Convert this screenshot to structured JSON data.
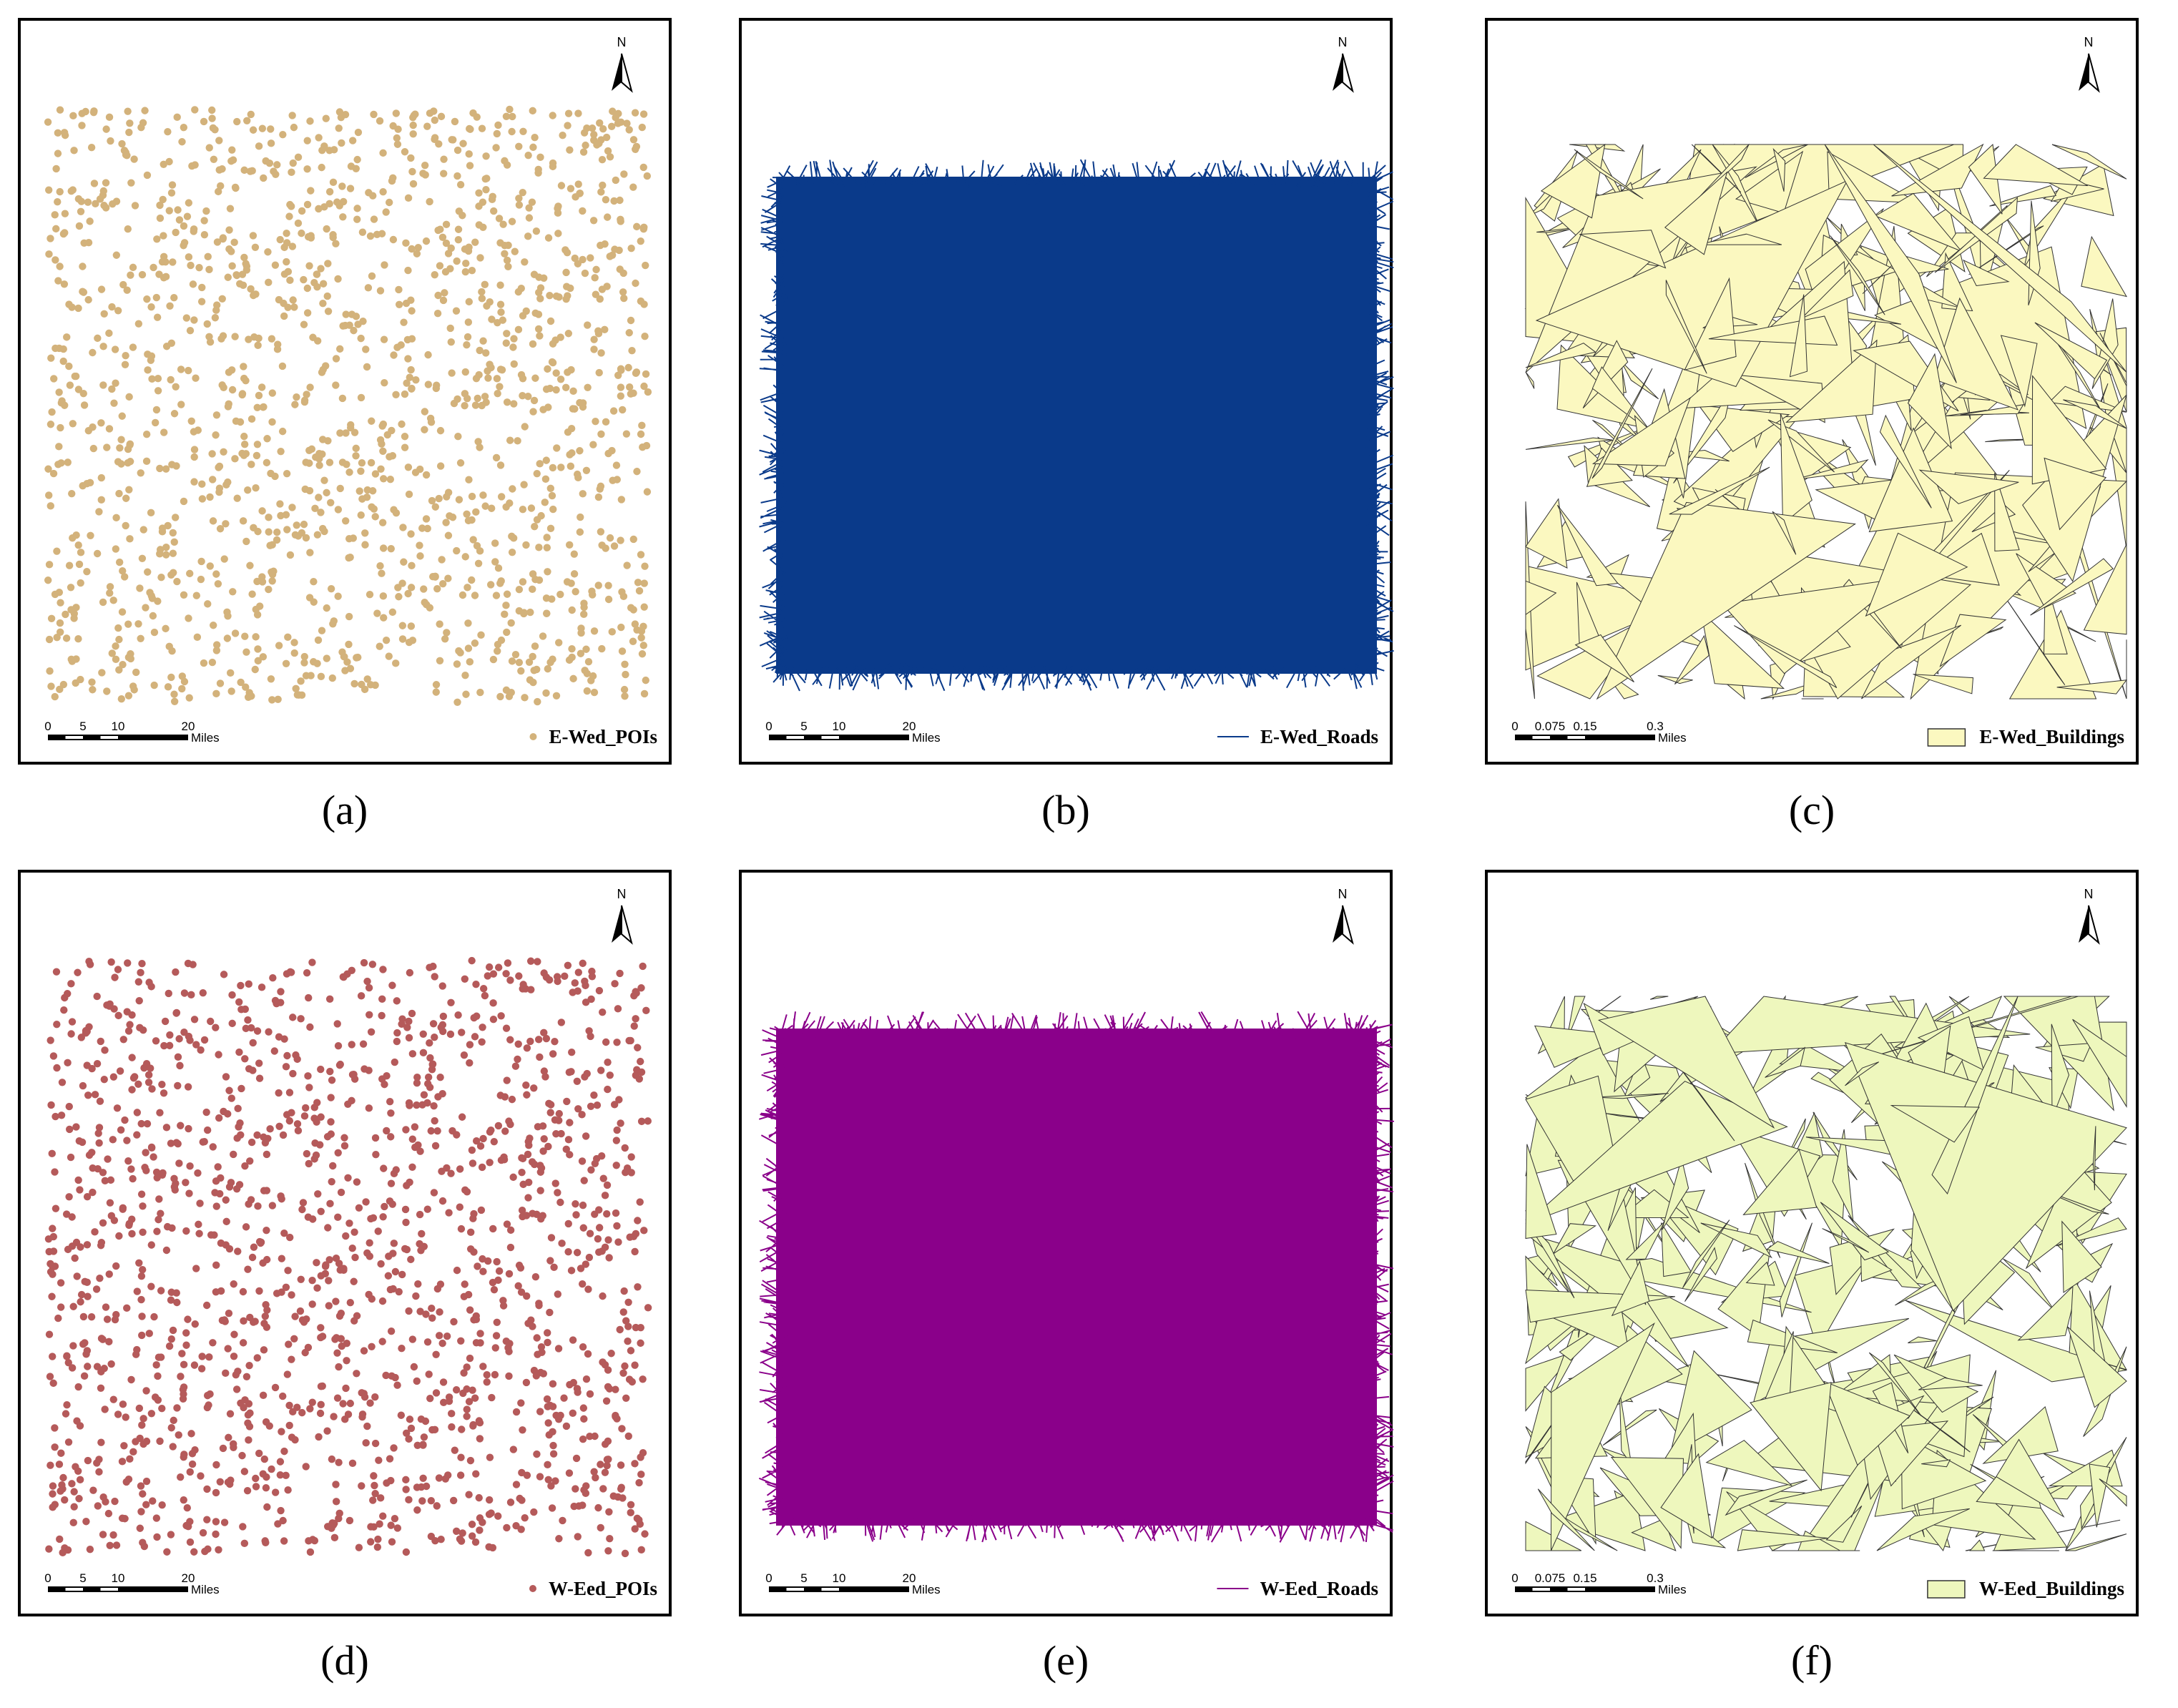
{
  "panels": [
    {
      "caption": "(a)",
      "north": "N",
      "legend": "E-Wed_POIs",
      "layer": "points",
      "color": "#d3b27b",
      "scale": {
        "labels": [
          "0",
          "5",
          "10",
          "20"
        ],
        "unit": "Miles"
      }
    },
    {
      "caption": "(b)",
      "north": "N",
      "legend": "E-Wed_Roads",
      "layer": "lines",
      "color": "#0a3a8a",
      "scale": {
        "labels": [
          "0",
          "5",
          "10",
          "20"
        ],
        "unit": "Miles"
      }
    },
    {
      "caption": "(c)",
      "north": "N",
      "legend": "E-Wed_Buildings",
      "layer": "polygons",
      "color": "#fbf8c0",
      "scale": {
        "labels": [
          "0",
          "0.075",
          "0.15",
          "0.3"
        ],
        "unit": "Miles"
      }
    },
    {
      "caption": "(d)",
      "north": "N",
      "legend": "W-Eed_POIs",
      "layer": "points",
      "color": "#b55a5a",
      "scale": {
        "labels": [
          "0",
          "5",
          "10",
          "20"
        ],
        "unit": "Miles"
      }
    },
    {
      "caption": "(e)",
      "north": "N",
      "legend": "W-Eed_Roads",
      "layer": "lines",
      "color": "#8a008a",
      "scale": {
        "labels": [
          "0",
          "5",
          "10",
          "20"
        ],
        "unit": "Miles"
      }
    },
    {
      "caption": "(f)",
      "north": "N",
      "legend": "W-Eed_Buildings",
      "layer": "polygons",
      "color": "#eef7bd",
      "scale": {
        "labels": [
          "0",
          "0.075",
          "0.15",
          "0.3"
        ],
        "unit": "Miles"
      }
    }
  ]
}
